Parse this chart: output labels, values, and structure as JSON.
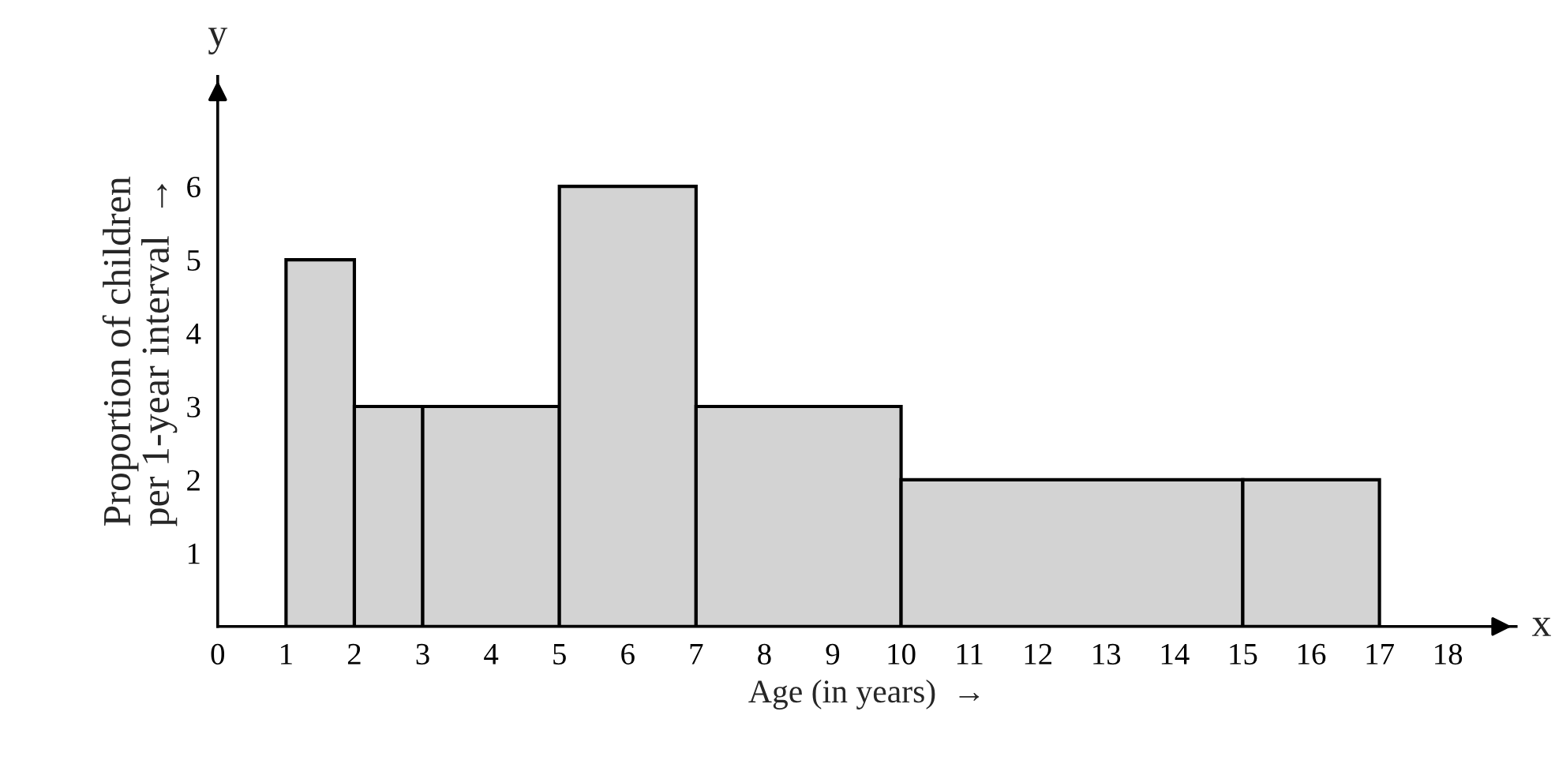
{
  "chart_data": {
    "type": "histogram",
    "bins": [
      1,
      2,
      3,
      5,
      7,
      10,
      15,
      17
    ],
    "values": [
      5,
      3,
      3,
      6,
      3,
      2,
      2
    ],
    "color": "#d3d3d3",
    "xlabel": "Age (in years)  →",
    "ylabel": "Proportion of children\nper 1-year interval  →",
    "annotations": [
      "y",
      "x"
    ],
    "xlim": [
      0,
      19
    ],
    "ylim": [
      0,
      7.5
    ],
    "xticks": [
      0,
      1,
      2,
      3,
      4,
      5,
      6,
      7,
      8,
      9,
      10,
      11,
      12,
      13,
      14,
      15,
      16,
      17,
      18
    ],
    "yticks": [
      1,
      2,
      3,
      4,
      5,
      6
    ],
    "grid": false,
    "legend": false
  }
}
